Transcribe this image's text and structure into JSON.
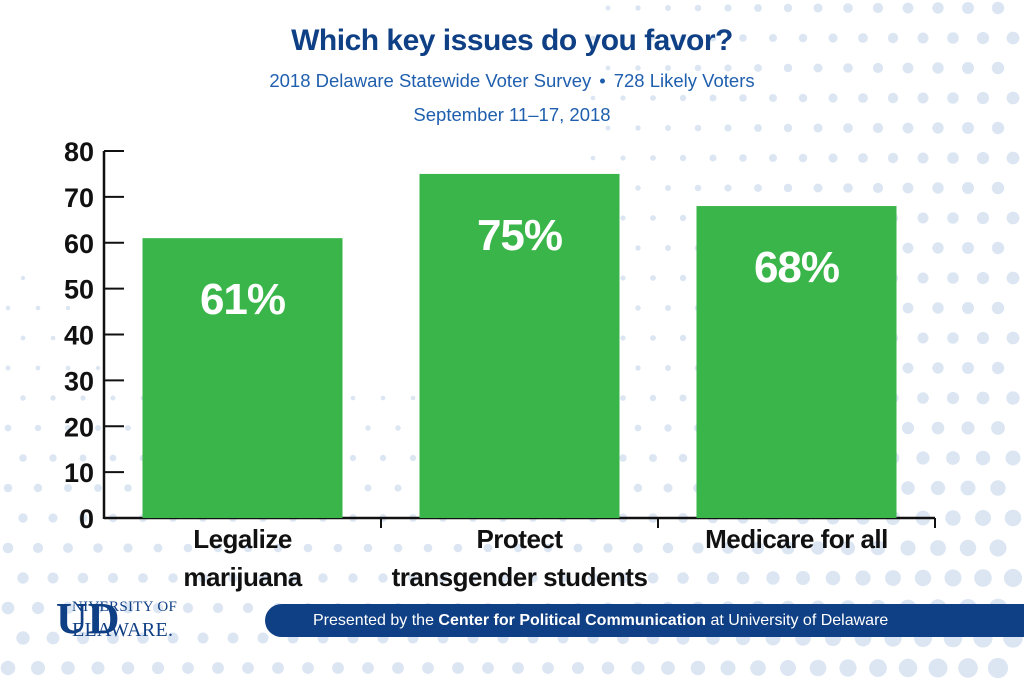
{
  "title": "Which key issues do you favor?",
  "subtitle_left": "2018 Delaware Statewide Voter Survey",
  "subtitle_sep": "•",
  "subtitle_right": "728 Likely Voters",
  "date": "September 11–17, 2018",
  "footer": {
    "prefix": "Presented by the ",
    "org": "Center for Political Communication",
    "suffix": " at University of Delaware"
  },
  "logo": {
    "initials": "UD",
    "line1": "NIVERSITY OF",
    "line2": "ELAWARE."
  },
  "colors": {
    "bar": "#3ab54a",
    "title": "#0f3f84",
    "subtitle": "#1f5fae",
    "axis": "#111111",
    "dots": "#dce6f3"
  },
  "chart_data": {
    "type": "bar",
    "title": "Which key issues do you favor?",
    "xlabel": "",
    "ylabel": "",
    "ylim": [
      0,
      80
    ],
    "yticks": [
      0,
      10,
      20,
      30,
      40,
      50,
      60,
      70,
      80
    ],
    "grid": false,
    "categories": [
      [
        "Legalize",
        "marijuana"
      ],
      [
        "Protect",
        "transgender students"
      ],
      [
        "Medicare for all"
      ]
    ],
    "values": [
      61,
      75,
      68
    ],
    "data_labels": [
      "61%",
      "75%",
      "68%"
    ]
  }
}
